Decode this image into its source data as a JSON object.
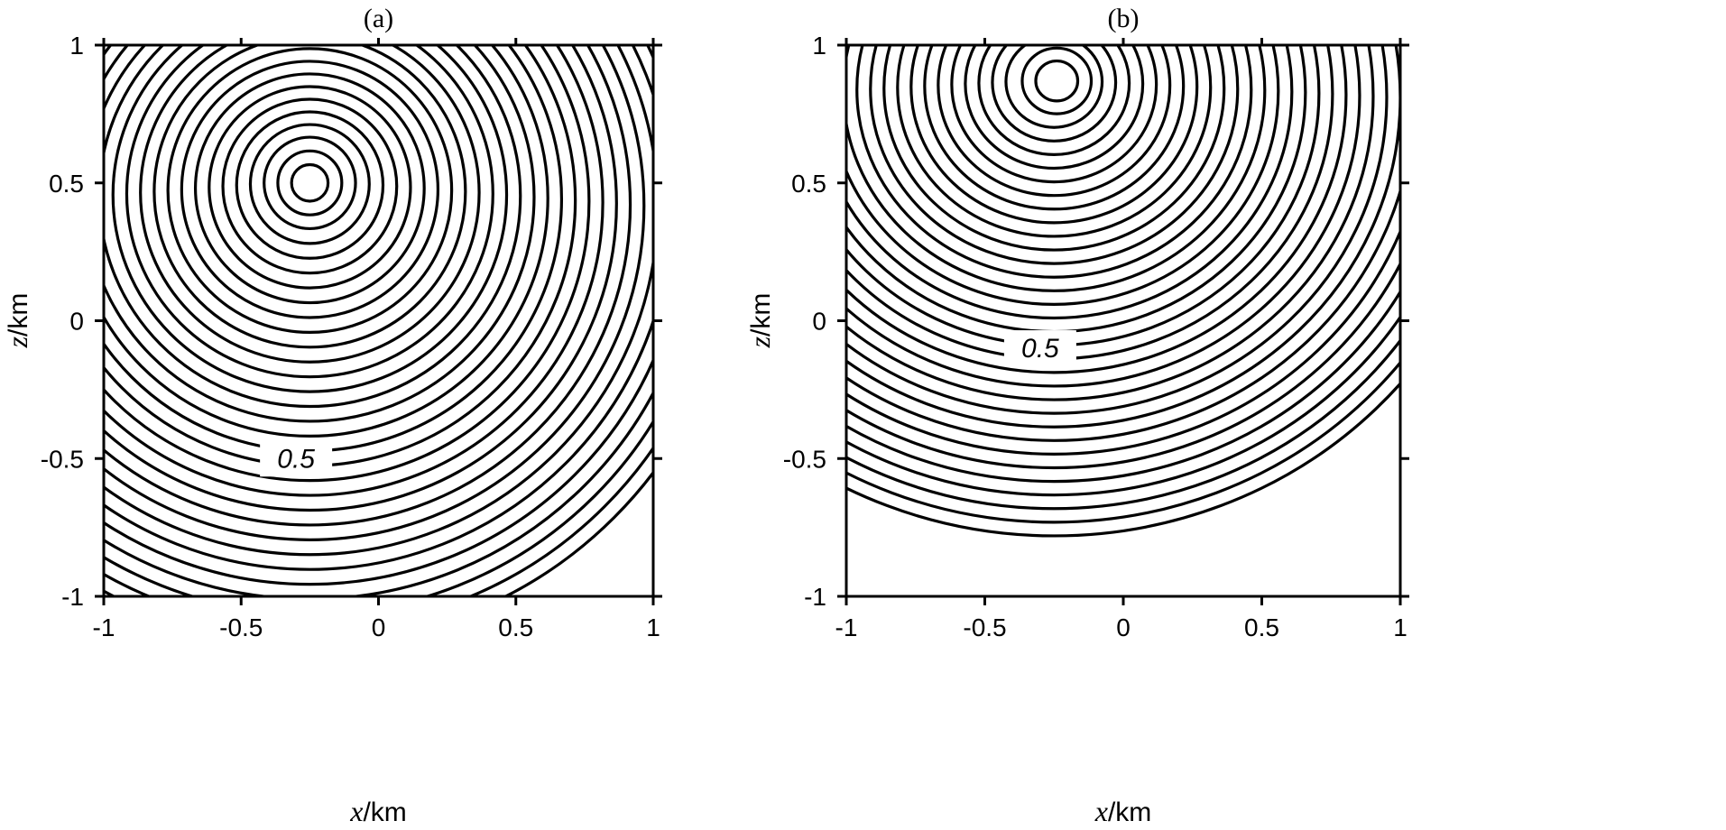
{
  "chart_data": [
    {
      "type": "contour",
      "title": "(a)",
      "xlabel_var": "x",
      "xlabel_unit": "/km",
      "ylabel_var": "z",
      "ylabel_unit": "/km",
      "xlim": [
        -1,
        1
      ],
      "ylim": [
        -1,
        1
      ],
      "xticks": [
        -1,
        -0.5,
        0,
        0.5,
        1
      ],
      "yticks": [
        -1,
        -0.5,
        0,
        0.5,
        1
      ],
      "xtick_labels": [
        "-1",
        "-0.5",
        "0",
        "0.5",
        "1"
      ],
      "ytick_labels": [
        "-1",
        "-0.5",
        "0",
        "0.5",
        "1"
      ],
      "source": {
        "x": -0.25,
        "z": 0.5
      },
      "contour_interval": 0.1,
      "contour_levels_shown": 19,
      "labeled_contour": {
        "text": "0.5",
        "x": -0.3,
        "z": -0.5
      }
    },
    {
      "type": "contour",
      "title": "(b)",
      "xlabel_var": "x",
      "xlabel_unit": "/km",
      "ylabel_var": "z",
      "ylabel_unit": "/km",
      "xlim": [
        -1,
        1
      ],
      "ylim": [
        -1,
        1
      ],
      "xticks": [
        -1,
        -0.5,
        0,
        0.5,
        1
      ],
      "yticks": [
        -1,
        -0.5,
        0,
        0.5,
        1
      ],
      "xtick_labels": [
        "-1",
        "-0.5",
        "0",
        "0.5",
        "1"
      ],
      "ytick_labels": [
        "-1",
        "-0.5",
        "0",
        "0.5",
        "1"
      ],
      "source": {
        "x": -0.25,
        "z": 0.87
      },
      "contour_interval": 0.1,
      "contour_levels_shown": 21,
      "labeled_contour": {
        "text": "0.5",
        "x": -0.3,
        "z": -0.1
      }
    }
  ]
}
